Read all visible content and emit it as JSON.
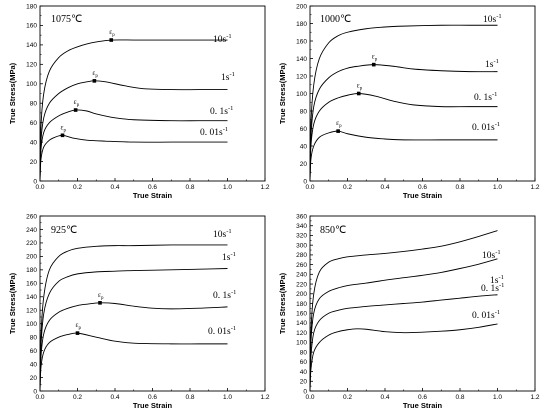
{
  "chart_data": [
    {
      "type": "line",
      "title": "1075℃",
      "xlabel": "True Strain",
      "ylabel": "True Stress(MPa)",
      "xlim": [
        0.0,
        1.2
      ],
      "ylim": [
        0,
        180
      ],
      "xticks": [
        "0.0",
        "0.2",
        "0.4",
        "0.6",
        "0.8",
        "1.0",
        "1.2"
      ],
      "yticks": [
        "0",
        "20",
        "40",
        "60",
        "80",
        "100",
        "120",
        "140",
        "160",
        "180"
      ],
      "peak_label": "ε",
      "peak_sub": "p",
      "series": [
        {
          "name": "10s",
          "name_sup": "-1",
          "peak": [
            0.38,
            145
          ],
          "x": [
            0,
            0.005,
            0.02,
            0.05,
            0.1,
            0.15,
            0.2,
            0.25,
            0.3,
            0.38,
            0.5,
            0.6,
            0.8,
            1.0
          ],
          "y": [
            0,
            55,
            90,
            113,
            127,
            134,
            138,
            141,
            143,
            145,
            145,
            145,
            145,
            145
          ]
        },
        {
          "name": "1s",
          "name_sup": "-1",
          "peak": [
            0.29,
            103
          ],
          "x": [
            0,
            0.005,
            0.02,
            0.05,
            0.1,
            0.15,
            0.2,
            0.25,
            0.29,
            0.35,
            0.45,
            0.55,
            0.7,
            0.85,
            1.0
          ],
          "y": [
            0,
            40,
            65,
            80,
            90,
            96,
            100,
            102,
            103,
            102,
            98,
            95,
            94,
            94,
            94
          ]
        },
        {
          "name": "0. 1s",
          "name_sup": "-1",
          "peak": [
            0.19,
            73
          ],
          "x": [
            0,
            0.005,
            0.02,
            0.05,
            0.1,
            0.15,
            0.19,
            0.25,
            0.3,
            0.4,
            0.5,
            0.7,
            0.85,
            1.0
          ],
          "y": [
            0,
            32,
            50,
            60,
            67,
            71,
            73,
            72,
            69,
            65,
            63,
            62,
            62,
            62
          ]
        },
        {
          "name": "0. 01s",
          "name_sup": "-1",
          "peak": [
            0.12,
            47
          ],
          "x": [
            0,
            0.005,
            0.02,
            0.05,
            0.08,
            0.12,
            0.18,
            0.25,
            0.35,
            0.5,
            0.7,
            0.85,
            1.0
          ],
          "y": [
            0,
            22,
            35,
            42,
            45,
            47,
            44,
            42,
            41,
            40,
            40,
            40,
            40
          ]
        }
      ]
    },
    {
      "type": "line",
      "title": "1000℃",
      "xlabel": "True Strain",
      "ylabel": "True Stress(MPa)",
      "xlim": [
        0.0,
        1.2
      ],
      "ylim": [
        0,
        200
      ],
      "xticks": [
        "0.0",
        "0.2",
        "0.4",
        "0.6",
        "0.8",
        "1.0",
        "1.2"
      ],
      "yticks": [
        "0",
        "20",
        "40",
        "60",
        "80",
        "100",
        "120",
        "140",
        "160",
        "180",
        "200"
      ],
      "peak_label": "ε",
      "peak_sub": "p",
      "series": [
        {
          "name": "10s",
          "name_sup": "-1",
          "x": [
            0,
            0.005,
            0.02,
            0.05,
            0.1,
            0.15,
            0.2,
            0.3,
            0.4,
            0.5,
            0.7,
            0.85,
            1.0
          ],
          "y": [
            0,
            65,
            110,
            140,
            158,
            166,
            170,
            174,
            176,
            177,
            178,
            178,
            178
          ]
        },
        {
          "name": "1s",
          "name_sup": "-1",
          "peak": [
            0.34,
            133
          ],
          "x": [
            0,
            0.005,
            0.02,
            0.05,
            0.1,
            0.15,
            0.2,
            0.25,
            0.34,
            0.45,
            0.55,
            0.7,
            0.85,
            1.0
          ],
          "y": [
            0,
            50,
            85,
            105,
            118,
            125,
            129,
            131,
            133,
            131,
            128,
            126,
            125,
            125
          ]
        },
        {
          "name": "0. 1s",
          "name_sup": "-1",
          "peak": [
            0.26,
            100
          ],
          "x": [
            0,
            0.005,
            0.02,
            0.05,
            0.1,
            0.15,
            0.2,
            0.26,
            0.35,
            0.45,
            0.55,
            0.7,
            0.85,
            1.0
          ],
          "y": [
            0,
            40,
            65,
            80,
            90,
            95,
            98,
            100,
            97,
            91,
            87,
            85,
            85,
            85
          ]
        },
        {
          "name": "0. 01s",
          "name_sup": "-1",
          "peak": [
            0.15,
            57
          ],
          "x": [
            0,
            0.005,
            0.02,
            0.05,
            0.1,
            0.15,
            0.2,
            0.3,
            0.4,
            0.5,
            0.7,
            0.85,
            1.0
          ],
          "y": [
            0,
            25,
            40,
            50,
            55,
            57,
            54,
            50,
            48,
            47,
            47,
            47,
            47
          ]
        }
      ]
    },
    {
      "type": "line",
      "title": "925℃",
      "xlabel": "True Strain",
      "ylabel": "True Stress(MPa)",
      "xlim": [
        0.0,
        1.2
      ],
      "ylim": [
        0,
        260
      ],
      "xticks": [
        "0.0",
        "0.2",
        "0.4",
        "0.6",
        "0.8",
        "1.0",
        "1.2"
      ],
      "yticks": [
        "0",
        "20",
        "40",
        "60",
        "80",
        "100",
        "120",
        "140",
        "160",
        "180",
        "200",
        "220",
        "240",
        "260"
      ],
      "peak_label": "ε",
      "peak_sub": "p",
      "series": [
        {
          "name": "10s",
          "name_sup": "-1",
          "x": [
            0,
            0.005,
            0.02,
            0.05,
            0.1,
            0.15,
            0.2,
            0.3,
            0.4,
            0.5,
            0.7,
            0.85,
            1.0
          ],
          "y": [
            0,
            80,
            140,
            180,
            200,
            208,
            212,
            215,
            216,
            216,
            217,
            217,
            217
          ]
        },
        {
          "name": "1s",
          "name_sup": "-1",
          "x": [
            0,
            0.005,
            0.02,
            0.05,
            0.1,
            0.15,
            0.2,
            0.3,
            0.4,
            0.5,
            0.7,
            0.85,
            1.0
          ],
          "y": [
            0,
            65,
            115,
            145,
            163,
            170,
            174,
            177,
            178,
            179,
            180,
            181,
            182
          ]
        },
        {
          "name": "0. 1s",
          "name_sup": "-1",
          "peak": [
            0.32,
            131
          ],
          "x": [
            0,
            0.005,
            0.02,
            0.05,
            0.1,
            0.15,
            0.2,
            0.25,
            0.32,
            0.4,
            0.5,
            0.6,
            0.7,
            0.85,
            1.0
          ],
          "y": [
            0,
            50,
            85,
            105,
            117,
            123,
            127,
            129,
            131,
            130,
            126,
            123,
            122,
            123,
            125
          ]
        },
        {
          "name": "0. 01s",
          "name_sup": "-1",
          "peak": [
            0.2,
            86
          ],
          "x": [
            0,
            0.005,
            0.02,
            0.05,
            0.1,
            0.15,
            0.2,
            0.3,
            0.4,
            0.5,
            0.7,
            0.85,
            1.0
          ],
          "y": [
            0,
            35,
            58,
            72,
            80,
            84,
            86,
            80,
            74,
            71,
            70,
            70,
            70
          ]
        }
      ]
    },
    {
      "type": "line",
      "title": "850℃",
      "xlabel": "True Strain",
      "ylabel": "True Stress(MPa)",
      "xlim": [
        0.0,
        1.2
      ],
      "ylim": [
        0,
        360
      ],
      "xticks": [
        "0.0",
        "0.2",
        "0.4",
        "0.6",
        "0.8",
        "1.0",
        "1.2"
      ],
      "yticks": [
        "0",
        "20",
        "40",
        "60",
        "80",
        "100",
        "120",
        "140",
        "160",
        "180",
        "200",
        "220",
        "240",
        "260",
        "280",
        "300",
        "320",
        "340",
        "360"
      ],
      "series": [
        {
          "name": "10s",
          "name_sup": "-1",
          "x": [
            0,
            0.005,
            0.02,
            0.05,
            0.1,
            0.15,
            0.2,
            0.3,
            0.4,
            0.5,
            0.6,
            0.7,
            0.8,
            0.9,
            1.0
          ],
          "y": [
            0,
            120,
            200,
            245,
            265,
            272,
            276,
            280,
            283,
            287,
            292,
            298,
            307,
            318,
            330
          ]
        },
        {
          "name": "1s",
          "name_sup": "-1",
          "x": [
            0,
            0.005,
            0.02,
            0.05,
            0.1,
            0.15,
            0.2,
            0.3,
            0.4,
            0.5,
            0.6,
            0.7,
            0.8,
            0.9,
            1.0
          ],
          "y": [
            0,
            100,
            160,
            190,
            205,
            212,
            217,
            222,
            228,
            233,
            238,
            244,
            252,
            261,
            272
          ]
        },
        {
          "name": "0. 1s",
          "name_sup": "-1",
          "x": [
            0,
            0.005,
            0.02,
            0.05,
            0.1,
            0.15,
            0.2,
            0.3,
            0.4,
            0.5,
            0.6,
            0.7,
            0.8,
            0.9,
            1.0
          ],
          "y": [
            0,
            70,
            120,
            145,
            160,
            166,
            170,
            174,
            177,
            180,
            183,
            187,
            191,
            195,
            198
          ]
        },
        {
          "name": "0. 01s",
          "name_sup": "-1",
          "x": [
            0,
            0.005,
            0.02,
            0.05,
            0.1,
            0.15,
            0.2,
            0.25,
            0.3,
            0.4,
            0.5,
            0.6,
            0.7,
            0.8,
            0.9,
            1.0
          ],
          "y": [
            0,
            45,
            80,
            100,
            115,
            122,
            126,
            128,
            127,
            122,
            120,
            121,
            123,
            126,
            131,
            138
          ]
        }
      ]
    }
  ]
}
